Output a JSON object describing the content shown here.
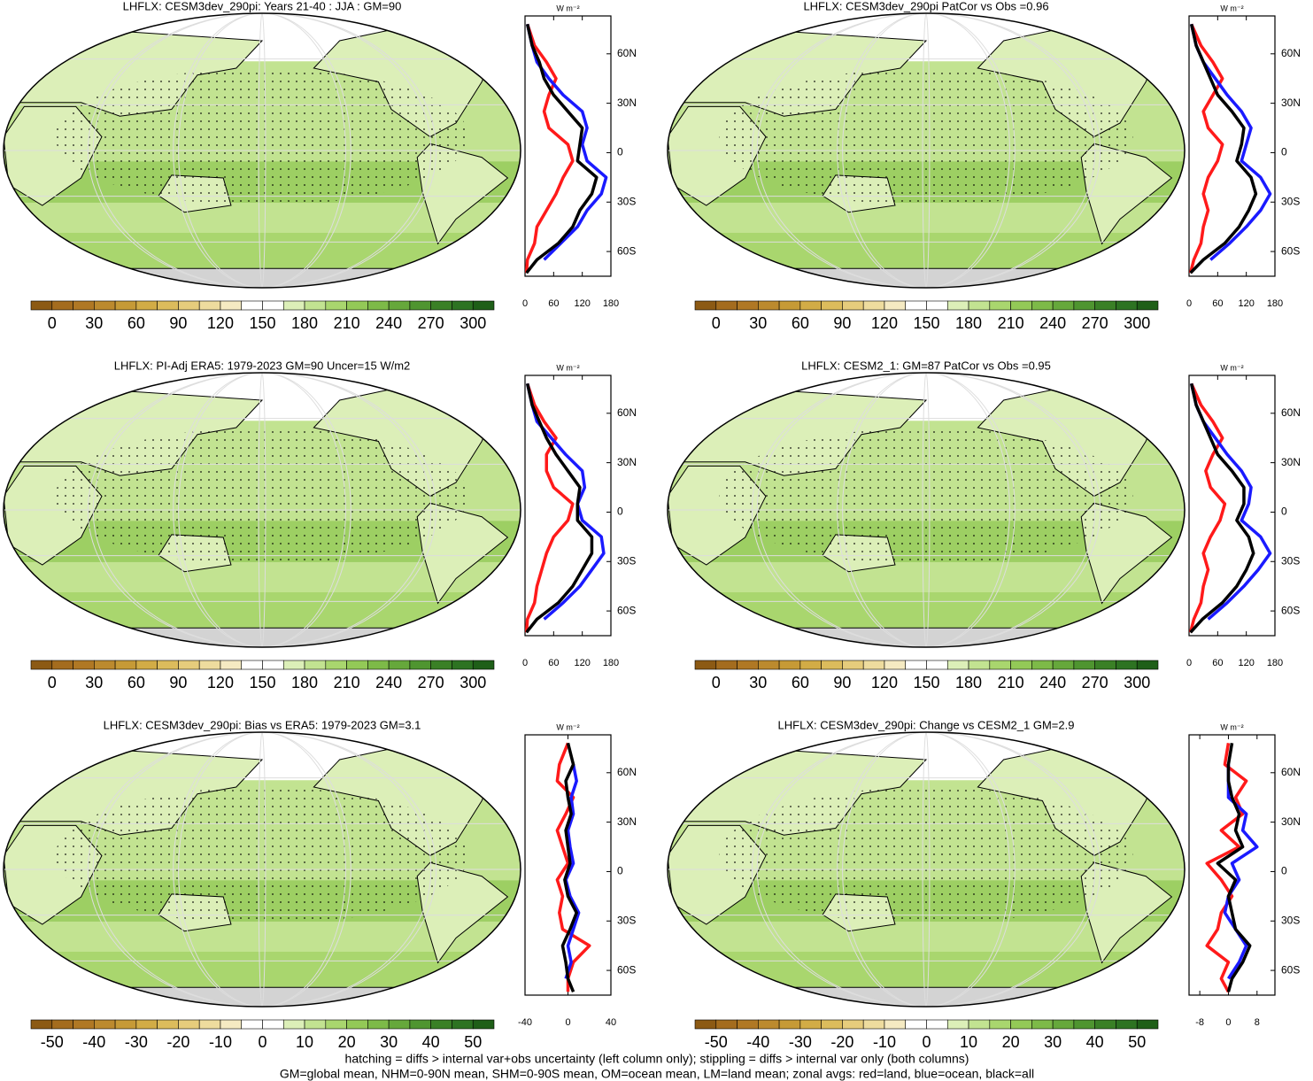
{
  "colorbar_colors": [
    "#8c5a14",
    "#a46c1e",
    "#b07824",
    "#bc8a2e",
    "#c69a36",
    "#d2ac46",
    "#dcbc5c",
    "#e6cc7c",
    "#eedc9e",
    "#f5eac2",
    "#ffffff",
    "#ffffff",
    "#dcefb8",
    "#c2e391",
    "#a9d66e",
    "#93c957",
    "#7dba48",
    "#66a83b",
    "#4f9530",
    "#3a8026",
    "#2d7322",
    "#1f5f18"
  ],
  "zonal_axis": {
    "unit_label": "W m⁻²",
    "ylim": [
      -75,
      83
    ],
    "yticks": [
      {
        "value": 60,
        "label": "60N"
      },
      {
        "value": 30,
        "label": "30N"
      },
      0,
      {
        "value": -30,
        "label": "30S"
      },
      {
        "value": -60,
        "label": "60S"
      }
    ],
    "lat": [
      -73,
      -65,
      -55,
      -45,
      -35,
      -25,
      -15,
      -5,
      5,
      15,
      25,
      35,
      45,
      55,
      65,
      78
    ]
  },
  "panels": [
    {
      "title": "LHFLX: CESM3dev_290pi: Years 21-40 : JJA : GM=90",
      "colorbar": {
        "lim": [
          -15,
          315
        ],
        "ticks": [
          0,
          30,
          60,
          90,
          120,
          150,
          180,
          210,
          240,
          270,
          300
        ]
      },
      "zonal": {
        "type": "line",
        "xlim": [
          0,
          180
        ],
        "xticks": [
          0,
          60,
          120,
          180
        ],
        "series": [
          {
            "color": "#ff1a1a",
            "values": [
              3,
              5,
              20,
              25,
              45,
              65,
              80,
              100,
              90,
              50,
              40,
              50,
              65,
              45,
              20,
              5
            ]
          },
          {
            "color": "#1a1aff",
            "values": [
              null,
              40,
              75,
              110,
              130,
              160,
              170,
              130,
              120,
              130,
              120,
              80,
              50,
              25,
              15,
              5
            ]
          },
          {
            "color": "#000000",
            "values": [
              3,
              25,
              70,
              100,
              115,
              140,
              150,
              110,
              115,
              120,
              90,
              60,
              40,
              30,
              15,
              5
            ]
          }
        ]
      }
    },
    {
      "title": "LHFLX: CESM3dev_290pi PatCor vs Obs =0.96",
      "colorbar": {
        "lim": [
          -15,
          315
        ],
        "ticks": [
          0,
          30,
          60,
          90,
          120,
          150,
          180,
          210,
          240,
          270,
          300
        ]
      },
      "zonal": {
        "type": "line",
        "xlim": [
          0,
          180
        ],
        "xticks": [
          0,
          60,
          120,
          180
        ],
        "series": [
          {
            "color": "#ff1a1a",
            "values": [
              3,
              10,
              25,
              30,
              40,
              30,
              40,
              60,
              70,
              40,
              30,
              50,
              70,
              50,
              25,
              5
            ]
          },
          {
            "color": "#1a1aff",
            "values": [
              null,
              45,
              85,
              120,
              150,
              170,
              150,
              110,
              120,
              130,
              110,
              80,
              55,
              30,
              15,
              5
            ]
          },
          {
            "color": "#000000",
            "values": [
              3,
              30,
              75,
              105,
              125,
              140,
              130,
              100,
              110,
              115,
              90,
              60,
              45,
              30,
              15,
              5
            ]
          }
        ]
      }
    },
    {
      "title": "LHFLX: PI-Adj ERA5: 1979-2023 GM=90 Uncer=15 W/m2",
      "colorbar": {
        "lim": [
          -15,
          315
        ],
        "ticks": [
          0,
          30,
          60,
          90,
          120,
          150,
          180,
          210,
          240,
          270,
          300
        ]
      },
      "zonal": {
        "type": "line",
        "xlim": [
          0,
          180
        ],
        "xticks": [
          0,
          60,
          120,
          180
        ],
        "series": [
          {
            "color": "#ff1a1a",
            "values": [
              3,
              5,
              20,
              25,
              35,
              45,
              60,
              90,
              100,
              60,
              45,
              45,
              65,
              40,
              20,
              5
            ]
          },
          {
            "color": "#1a1aff",
            "values": [
              null,
              40,
              80,
              115,
              140,
              165,
              160,
              120,
              110,
              125,
              120,
              85,
              55,
              25,
              15,
              5
            ]
          },
          {
            "color": "#000000",
            "values": [
              3,
              25,
              70,
              100,
              120,
              140,
              140,
              110,
              110,
              115,
              90,
              65,
              45,
              30,
              15,
              5
            ]
          }
        ]
      }
    },
    {
      "title": "LHFLX: CESM2_1: GM=87 PatCor vs Obs =0.95",
      "colorbar": {
        "lim": [
          -15,
          315
        ],
        "ticks": [
          0,
          30,
          60,
          90,
          120,
          150,
          180,
          210,
          240,
          270,
          300
        ]
      },
      "zonal": {
        "type": "line",
        "xlim": [
          0,
          180
        ],
        "xticks": [
          0,
          60,
          120,
          180
        ],
        "series": [
          {
            "color": "#ff1a1a",
            "values": [
              3,
              10,
              25,
              30,
              40,
              30,
              45,
              65,
              75,
              45,
              35,
              50,
              70,
              50,
              25,
              5
            ]
          },
          {
            "color": "#1a1aff",
            "values": [
              null,
              40,
              80,
              115,
              145,
              170,
              150,
              110,
              125,
              130,
              110,
              80,
              55,
              30,
              15,
              5
            ]
          },
          {
            "color": "#000000",
            "values": [
              3,
              28,
              70,
              100,
              120,
              135,
              125,
              100,
              115,
              115,
              90,
              60,
              45,
              30,
              15,
              5
            ]
          }
        ]
      }
    },
    {
      "title": "LHFLX: CESM3dev_290pi: Bias vs ERA5: 1979-2023 GM=3.1",
      "colorbar": {
        "lim": [
          -55,
          55
        ],
        "ticks": [
          -50,
          -40,
          -30,
          -20,
          -10,
          0,
          10,
          20,
          30,
          40,
          50
        ]
      },
      "zonal": {
        "type": "line",
        "xlim": [
          -40,
          40
        ],
        "xticks": [
          -40,
          0,
          40
        ],
        "series": [
          {
            "color": "#ff1a1a",
            "values": [
              0,
              0,
              5,
              20,
              -5,
              -8,
              -5,
              -10,
              0,
              -5,
              -10,
              -2,
              5,
              -10,
              -8,
              0
            ]
          },
          {
            "color": "#1a1aff",
            "values": [
              null,
              -2,
              3,
              0,
              5,
              10,
              2,
              -2,
              5,
              2,
              0,
              5,
              3,
              8,
              5,
              null
            ]
          },
          {
            "color": "#000000",
            "values": [
              5,
              0,
              -2,
              -5,
              2,
              8,
              0,
              -3,
              2,
              0,
              -2,
              3,
              0,
              -2,
              5,
              0
            ]
          }
        ]
      }
    },
    {
      "title": "LHFLX: CESM3dev_290pi: Change vs CESM2_1 GM=2.9",
      "colorbar": {
        "lim": [
          -55,
          55
        ],
        "ticks": [
          -50,
          -40,
          -30,
          -20,
          -10,
          0,
          10,
          20,
          30,
          40,
          50
        ]
      },
      "zonal": {
        "type": "line",
        "xlim": [
          -11,
          13
        ],
        "xticks": [
          -8,
          0,
          8
        ],
        "series": [
          {
            "color": "#ff1a1a",
            "values": [
              0,
              -2,
              0,
              -6,
              -3,
              -2,
              1,
              -2,
              -6,
              3,
              -2,
              4,
              2,
              5,
              -1,
              0
            ]
          },
          {
            "color": "#1a1aff",
            "values": [
              null,
              0,
              3,
              5,
              2,
              -1,
              0,
              3,
              1,
              8,
              4,
              5,
              0,
              0,
              0,
              null
            ]
          },
          {
            "color": "#000000",
            "values": [
              0,
              1,
              4,
              6,
              2,
              1,
              0,
              2,
              -3,
              4,
              2,
              3,
              1,
              0,
              0,
              1
            ]
          }
        ]
      }
    }
  ],
  "notes": [
    "hatching = diffs > internal var+obs uncertainty (left column only); stippling = diffs > internal var only (both columns)",
    "GM=global mean, NHM=0-90N mean, SHM=0-90S mean, OM=ocean mean, LM=land mean; zonal avgs: red=land, blue=ocean, black=all"
  ]
}
